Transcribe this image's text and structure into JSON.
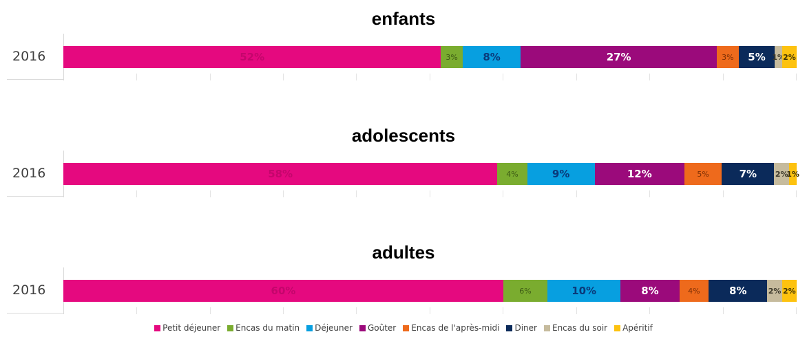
{
  "chart_data": {
    "type": "bar",
    "orientation": "horizontal",
    "stacked": true,
    "legend_position": "bottom",
    "series_names": [
      "Petit déjeuner",
      "Encas du matin",
      "Déjeuner",
      "Goûter",
      "Encas de l'après-midi",
      "Diner",
      "Encas du soir",
      "Apéritif"
    ],
    "colors": [
      "#e5097f",
      "#7aac2f",
      "#079fe0",
      "#9b0a7b",
      "#ee6a1c",
      "#0b2a5a",
      "#c6bb9d",
      "#fdc20f"
    ],
    "label_colors": [
      "#c4066c",
      "#3d5a15",
      "#0a3a7a",
      "#ffffff",
      "#7a2e05",
      "#ffffff",
      "#3d3a2c",
      "#3d3005"
    ],
    "panels": [
      {
        "title": "enfants",
        "category": "2016",
        "values": [
          52,
          3,
          8,
          27,
          3,
          5,
          1,
          2
        ],
        "labels": [
          "52%",
          "3%",
          "8%",
          "27%",
          "3%",
          "5%",
          "1%",
          "2%"
        ]
      },
      {
        "title": "adolescents",
        "category": "2016",
        "values": [
          58,
          4,
          9,
          12,
          5,
          7,
          2,
          1
        ],
        "labels": [
          "58%",
          "4%",
          "9%",
          "12%",
          "5%",
          "7%",
          "2%",
          "1%"
        ]
      },
      {
        "title": "adultes",
        "category": "2016",
        "values": [
          60,
          6,
          10,
          8,
          4,
          8,
          2,
          2
        ],
        "labels": [
          "60%",
          "6%",
          "10%",
          "8%",
          "4%",
          "8%",
          "2%",
          "2%"
        ]
      }
    ]
  }
}
